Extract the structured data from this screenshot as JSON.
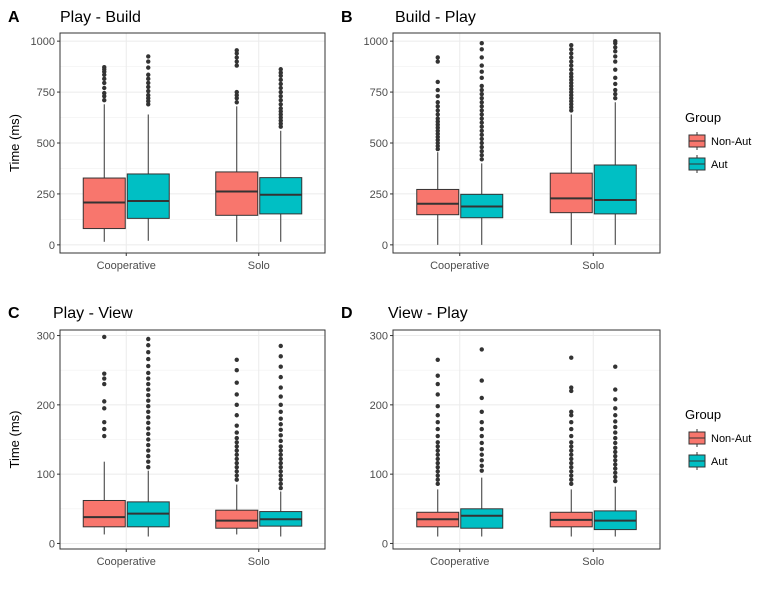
{
  "legend": {
    "title": "Group",
    "items": [
      {
        "label": "Non-Aut",
        "color": "#F8766D"
      },
      {
        "label": "Aut",
        "color": "#00BFC4"
      }
    ]
  },
  "chart_data": [
    {
      "type": "box",
      "letter": "A",
      "title": "Play - Build",
      "ylabel": "Time (ms)",
      "xlabel": "",
      "ylim": [
        -40,
        1040
      ],
      "yticks": [
        0,
        250,
        500,
        750,
        1000
      ],
      "categories": [
        "Cooperative",
        "Solo"
      ],
      "series": [
        {
          "name": "Non-Aut",
          "color": "#F8766D",
          "boxes": [
            {
              "whisker_low": 15,
              "q1": 80,
              "median": 208,
              "q3": 328,
              "whisker_high": 690,
              "outliers": [
                710,
                730,
                745,
                770,
                795,
                815,
                835,
                850,
                862,
                872
              ]
            },
            {
              "whisker_low": 15,
              "q1": 145,
              "median": 262,
              "q3": 358,
              "whisker_high": 680,
              "outliers": [
                700,
                720,
                735,
                750,
                880,
                900,
                920,
                940,
                955
              ]
            }
          ]
        },
        {
          "name": "Aut",
          "color": "#00BFC4",
          "boxes": [
            {
              "whisker_low": 20,
              "q1": 130,
              "median": 215,
              "q3": 348,
              "whisker_high": 640,
              "outliers": [
                690,
                705,
                720,
                735,
                755,
                775,
                795,
                815,
                835,
                870,
                900,
                925
              ]
            },
            {
              "whisker_low": 15,
              "q1": 152,
              "median": 246,
              "q3": 330,
              "whisker_high": 560,
              "outliers": [
                580,
                595,
                610,
                625,
                640,
                655,
                670,
                690,
                710,
                730,
                750,
                770,
                790,
                810,
                830,
                845,
                862
              ]
            }
          ]
        }
      ]
    },
    {
      "type": "box",
      "letter": "B",
      "title": "Build - Play",
      "ylabel": "",
      "xlabel": "",
      "ylim": [
        -40,
        1040
      ],
      "yticks": [
        0,
        250,
        500,
        750,
        1000
      ],
      "categories": [
        "Cooperative",
        "Solo"
      ],
      "series": [
        {
          "name": "Non-Aut",
          "color": "#F8766D",
          "boxes": [
            {
              "whisker_low": 0,
              "q1": 148,
              "median": 202,
              "q3": 272,
              "whisker_high": 455,
              "outliers": [
                470,
                485,
                500,
                515,
                530,
                545,
                560,
                575,
                590,
                605,
                620,
                640,
                660,
                680,
                700,
                730,
                760,
                800,
                900,
                920
              ]
            },
            {
              "whisker_low": 0,
              "q1": 158,
              "median": 228,
              "q3": 352,
              "whisker_high": 640,
              "outliers": [
                660,
                675,
                690,
                705,
                720,
                735,
                750,
                765,
                780,
                795,
                810,
                825,
                840,
                860,
                880,
                900,
                920,
                940,
                960,
                980
              ]
            }
          ]
        },
        {
          "name": "Aut",
          "color": "#00BFC4",
          "boxes": [
            {
              "whisker_low": 0,
              "q1": 133,
              "median": 188,
              "q3": 248,
              "whisker_high": 400,
              "outliers": [
                420,
                440,
                460,
                480,
                500,
                520,
                540,
                560,
                580,
                600,
                620,
                640,
                660,
                680,
                700,
                720,
                740,
                760,
                780,
                820,
                850,
                880,
                920,
                960,
                990
              ]
            },
            {
              "whisker_low": 0,
              "q1": 152,
              "median": 220,
              "q3": 392,
              "whisker_high": 700,
              "outliers": [
                720,
                740,
                760,
                790,
                820,
                860,
                900,
                925,
                950,
                970,
                990,
                1000
              ]
            }
          ]
        }
      ]
    },
    {
      "type": "box",
      "letter": "C",
      "title": "Play - View",
      "ylabel": "Time (ms)",
      "xlabel": "",
      "ylim": [
        -8,
        308
      ],
      "yticks": [
        0,
        100,
        200,
        300
      ],
      "categories": [
        "Cooperative",
        "Solo"
      ],
      "series": [
        {
          "name": "Non-Aut",
          "color": "#F8766D",
          "boxes": [
            {
              "whisker_low": 13,
              "q1": 24,
              "median": 38,
              "q3": 62,
              "whisker_high": 118,
              "outliers": [
                155,
                165,
                175,
                195,
                205,
                230,
                238,
                245,
                298
              ]
            },
            {
              "whisker_low": 13,
              "q1": 22,
              "median": 33,
              "q3": 48,
              "whisker_high": 85,
              "outliers": [
                92,
                98,
                104,
                110,
                116,
                122,
                128,
                134,
                140,
                146,
                152,
                160,
                170,
                185,
                200,
                215,
                232,
                250,
                265
              ]
            }
          ]
        },
        {
          "name": "Aut",
          "color": "#00BFC4",
          "boxes": [
            {
              "whisker_low": 10,
              "q1": 24,
              "median": 43,
              "q3": 60,
              "whisker_high": 105,
              "outliers": [
                110,
                118,
                126,
                134,
                142,
                150,
                158,
                166,
                174,
                182,
                190,
                198,
                206,
                214,
                222,
                230,
                238,
                246,
                256,
                266,
                276,
                286,
                295
              ]
            },
            {
              "whisker_low": 10,
              "q1": 25,
              "median": 35,
              "q3": 46,
              "whisker_high": 75,
              "outliers": [
                80,
                86,
                92,
                98,
                104,
                110,
                116,
                122,
                128,
                134,
                140,
                148,
                156,
                164,
                172,
                180,
                190,
                200,
                212,
                225,
                240,
                255,
                270,
                285
              ]
            }
          ]
        }
      ]
    },
    {
      "type": "box",
      "letter": "D",
      "title": "View - Play",
      "ylabel": "",
      "xlabel": "",
      "ylim": [
        -8,
        308
      ],
      "yticks": [
        0,
        100,
        200,
        300
      ],
      "categories": [
        "Cooperative",
        "Solo"
      ],
      "series": [
        {
          "name": "Non-Aut",
          "color": "#F8766D",
          "boxes": [
            {
              "whisker_low": 10,
              "q1": 24,
              "median": 35,
              "q3": 45,
              "whisker_high": 78,
              "outliers": [
                86,
                92,
                98,
                104,
                110,
                116,
                122,
                128,
                134,
                140,
                146,
                155,
                165,
                175,
                185,
                198,
                215,
                230,
                242,
                265
              ]
            },
            {
              "whisker_low": 10,
              "q1": 24,
              "median": 34,
              "q3": 45,
              "whisker_high": 78,
              "outliers": [
                86,
                92,
                98,
                104,
                110,
                116,
                122,
                128,
                134,
                140,
                146,
                155,
                165,
                175,
                185,
                190,
                220,
                225,
                268
              ]
            }
          ]
        },
        {
          "name": "Aut",
          "color": "#00BFC4",
          "boxes": [
            {
              "whisker_low": 10,
              "q1": 22,
              "median": 40,
              "q3": 50,
              "whisker_high": 95,
              "outliers": [
                105,
                112,
                120,
                128,
                136,
                145,
                155,
                165,
                175,
                190,
                210,
                235,
                280
              ]
            },
            {
              "whisker_low": 10,
              "q1": 20,
              "median": 33,
              "q3": 47,
              "whisker_high": 82,
              "outliers": [
                90,
                96,
                102,
                108,
                114,
                120,
                126,
                132,
                138,
                145,
                152,
                160,
                168,
                176,
                185,
                195,
                208,
                222,
                255
              ]
            }
          ]
        }
      ]
    }
  ]
}
